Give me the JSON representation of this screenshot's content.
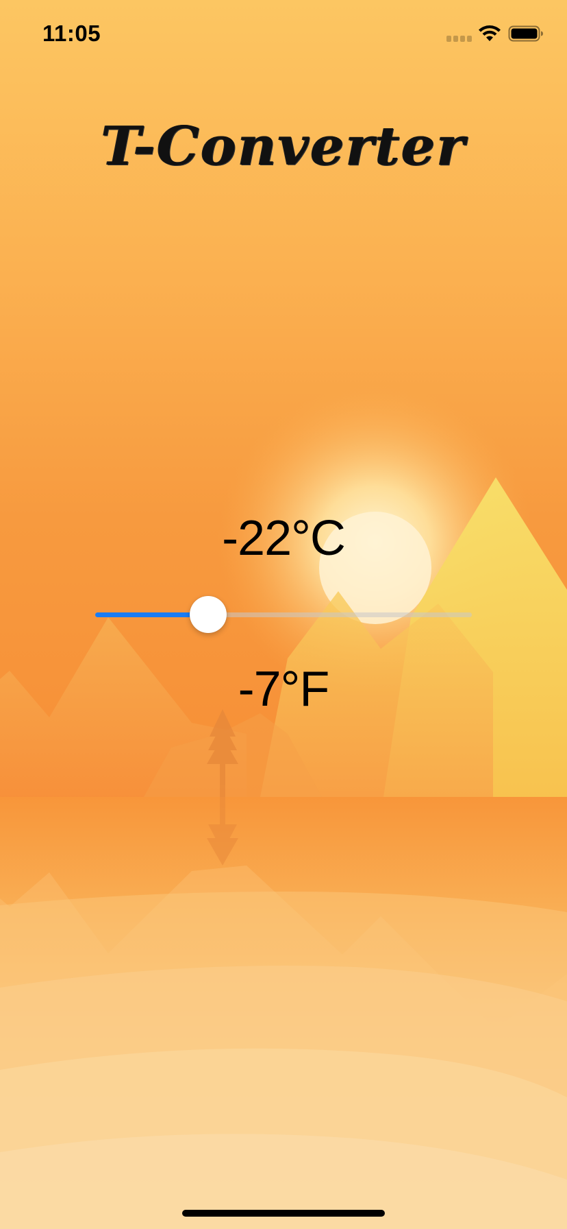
{
  "status_bar": {
    "time": "11:05"
  },
  "app": {
    "title": "T-Converter"
  },
  "temperature": {
    "celsius_label": "-22°C",
    "fahrenheit_label": "-7°F",
    "slider_fraction": 0.3
  },
  "colors": {
    "accent": "#1a7cf4",
    "sky_top": "#fcc662",
    "sky_horizon": "#f7903a",
    "sun": "#fff2d4",
    "mountain_light": "#f9d75b",
    "ground_light": "#fbdda5"
  }
}
